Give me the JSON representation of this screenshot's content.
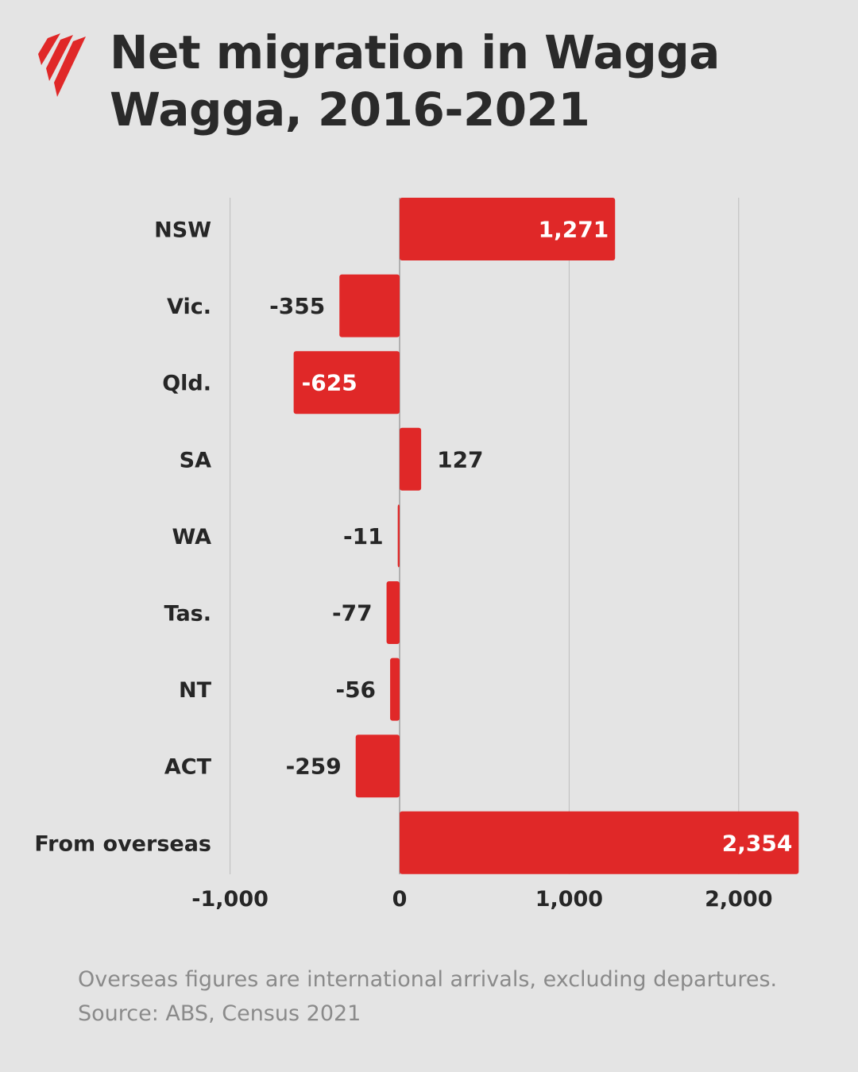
{
  "header": {
    "title": "Net migration in Wagga Wagga, 2016-2021",
    "logo_icon": "sbs-flame-icon"
  },
  "chart_data": {
    "type": "bar",
    "orientation": "horizontal",
    "title": "Net migration in Wagga Wagga, 2016-2021",
    "xlabel": "",
    "ylabel": "",
    "categories": [
      "NSW",
      "Vic.",
      "Qld.",
      "SA",
      "WA",
      "Tas.",
      "NT",
      "ACT",
      "From overseas"
    ],
    "values": [
      1271,
      -355,
      -625,
      127,
      -11,
      -77,
      -56,
      -259,
      2354
    ],
    "value_labels": [
      "1,271",
      "-355",
      "-625",
      "127",
      "-11",
      "-77",
      "-56",
      "-259",
      "2,354"
    ],
    "xlim": [
      -1000,
      2354
    ],
    "x_ticks": [
      -1000,
      0,
      1000,
      2000
    ],
    "x_tick_labels": [
      "-1,000",
      "0",
      "1,000",
      "2,000"
    ],
    "grid": true,
    "legend": "none",
    "bar_color": "#e02828"
  },
  "footnote": {
    "note": "Overseas figures are international arrivals, excluding departures.",
    "source": "Source: ABS, Census 2021"
  },
  "colors": {
    "background": "#e4e4e4",
    "bar": "#e02828",
    "text": "#262626",
    "muted": "#8a8a8a",
    "gridline": "#bdbdbd",
    "label_on_bar": "#ffffff"
  }
}
